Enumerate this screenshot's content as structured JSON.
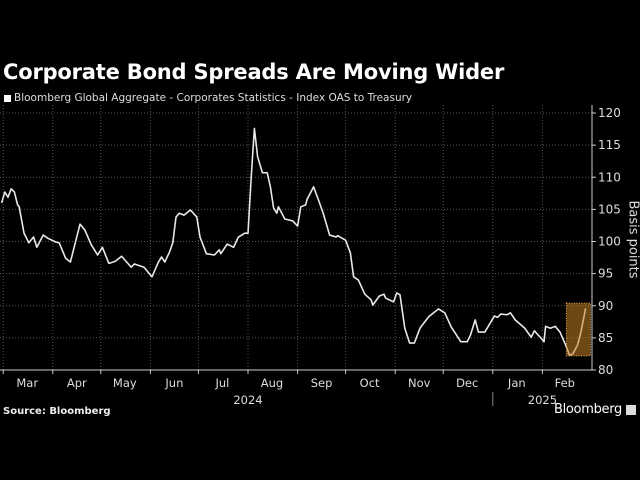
{
  "chart_data": {
    "type": "line",
    "title": "Corporate Bond Spreads Are Moving Wider",
    "series": [
      {
        "name": "Bloomberg Global Aggregate - Corporates Statistics - Index OAS to Treasury",
        "color": "#e8e8e8",
        "x": [
          "2024-02-29",
          "2024-03-02",
          "2024-03-04",
          "2024-03-06",
          "2024-03-08",
          "2024-03-10",
          "2024-03-11",
          "2024-03-14",
          "2024-03-17",
          "2024-03-20",
          "2024-03-22",
          "2024-03-26",
          "2024-03-29",
          "2024-04-03",
          "2024-04-05",
          "2024-04-09",
          "2024-04-12",
          "2024-04-18",
          "2024-04-21",
          "2024-04-25",
          "2024-04-29",
          "2024-05-02",
          "2024-05-06",
          "2024-05-10",
          "2024-05-14",
          "2024-05-20",
          "2024-05-22",
          "2024-05-28",
          "2024-06-02",
          "2024-06-06",
          "2024-06-08",
          "2024-06-10",
          "2024-06-13",
          "2024-06-15",
          "2024-06-17",
          "2024-06-19",
          "2024-06-22",
          "2024-06-26",
          "2024-06-30",
          "2024-07-02",
          "2024-07-06",
          "2024-07-11",
          "2024-07-14",
          "2024-07-15",
          "2024-07-19",
          "2024-07-23",
          "2024-07-26",
          "2024-07-30",
          "2024-08-01",
          "2024-08-03",
          "2024-08-05",
          "2024-08-07",
          "2024-08-10",
          "2024-08-13",
          "2024-08-15",
          "2024-08-17",
          "2024-08-19",
          "2024-08-20",
          "2024-08-24",
          "2024-08-29",
          "2024-09-01",
          "2024-09-03",
          "2024-09-06",
          "2024-09-07",
          "2024-09-11",
          "2024-09-14",
          "2024-09-17",
          "2024-09-21",
          "2024-09-25",
          "2024-09-26",
          "2024-10-01",
          "2024-10-04",
          "2024-10-06",
          "2024-10-09",
          "2024-10-13",
          "2024-10-17",
          "2024-10-18",
          "2024-10-22",
          "2024-10-25",
          "2024-10-26",
          "2024-10-31",
          "2024-11-02",
          "2024-11-04",
          "2024-11-07",
          "2024-11-10",
          "2024-11-13",
          "2024-11-16",
          "2024-11-17",
          "2024-11-22",
          "2024-11-28",
          "2024-12-02",
          "2024-12-06",
          "2024-12-12",
          "2024-12-16",
          "2024-12-18",
          "2024-12-21",
          "2024-12-23",
          "2024-12-27",
          "2025-01-02",
          "2025-01-04",
          "2025-01-06",
          "2025-01-10",
          "2025-01-12",
          "2025-01-15",
          "2025-01-21",
          "2025-01-25",
          "2025-01-27",
          "2025-01-31",
          "2025-02-02",
          "2025-02-03",
          "2025-02-06",
          "2025-02-09",
          "2025-02-12",
          "2025-02-15",
          "2025-02-18",
          "2025-02-20",
          "2025-02-23",
          "2025-02-25",
          "2025-02-28"
        ],
        "values": [
          106.0,
          107.7,
          106.9,
          108.2,
          107.7,
          105.7,
          105.4,
          101.3,
          99.8,
          100.7,
          99.1,
          101.0,
          100.5,
          99.9,
          99.8,
          97.4,
          96.8,
          102.7,
          101.8,
          99.5,
          97.9,
          99.1,
          96.6,
          96.9,
          97.7,
          96.0,
          96.5,
          96.0,
          94.5,
          96.8,
          97.6,
          96.8,
          98.4,
          99.8,
          103.8,
          104.4,
          104.1,
          104.9,
          103.8,
          100.7,
          98.1,
          97.9,
          98.7,
          98.1,
          99.6,
          99.1,
          100.7,
          101.3,
          101.3,
          110.0,
          117.6,
          113.2,
          110.7,
          110.7,
          108.5,
          105.2,
          104.4,
          105.4,
          103.5,
          103.2,
          102.4,
          105.4,
          105.7,
          106.6,
          108.5,
          106.5,
          104.4,
          101.0,
          100.7,
          100.9,
          100.2,
          98.2,
          94.5,
          94.0,
          91.8,
          90.9,
          90.1,
          91.5,
          91.8,
          91.2,
          90.6,
          92.0,
          91.7,
          86.5,
          84.2,
          84.2,
          86.2,
          86.7,
          88.3,
          89.5,
          88.9,
          86.7,
          84.4,
          84.4,
          85.4,
          87.8,
          85.9,
          85.9,
          88.4,
          88.2,
          88.7,
          88.6,
          88.9,
          87.8,
          86.5,
          85.1,
          86.1,
          85.0,
          84.4,
          86.8,
          86.5,
          86.8,
          85.9,
          84.2,
          82.3,
          82.5,
          83.9,
          85.8,
          89.6
        ]
      }
    ],
    "xlim": [
      "2024-02-28",
      "2025-03-04"
    ],
    "ylim": [
      80,
      120
    ],
    "yticks": [
      "80",
      "85",
      "90",
      "95",
      "100",
      "105",
      "110",
      "115",
      "120"
    ],
    "ylabel": "Basis points",
    "y_axis_side": "right",
    "xtick_labels": [
      {
        "label": "Mar",
        "date": "2024-03-16"
      },
      {
        "label": "Apr",
        "date": "2024-04-16"
      },
      {
        "label": "May",
        "date": "2024-05-16"
      },
      {
        "label": "Jun",
        "date": "2024-06-16"
      },
      {
        "label": "Jul",
        "date": "2024-07-16"
      },
      {
        "label": "Aug",
        "date": "2024-08-16"
      },
      {
        "label": "Sep",
        "date": "2024-09-16"
      },
      {
        "label": "Oct",
        "date": "2024-10-16"
      },
      {
        "label": "Nov",
        "date": "2024-11-16"
      },
      {
        "label": "Dec",
        "date": "2024-12-16"
      },
      {
        "label": "Jan",
        "date": "2025-01-16"
      },
      {
        "label": "Feb",
        "date": "2025-02-15"
      }
    ],
    "month_boundaries": [
      "2024-03-01",
      "2024-04-01",
      "2024-05-01",
      "2024-06-01",
      "2024-07-01",
      "2024-08-01",
      "2024-09-01",
      "2024-10-01",
      "2024-11-01",
      "2024-12-01",
      "2025-01-01",
      "2025-02-01"
    ],
    "year_labels": [
      {
        "label": "2024",
        "date": "2024-08-01"
      },
      {
        "label": "2025",
        "date": "2025-02-01"
      }
    ],
    "year_divider": "2025-01-01",
    "highlight": {
      "x": [
        "2025-02-16",
        "2025-03-03"
      ],
      "y": [
        82.2,
        90.4
      ],
      "color": "#c8822a"
    },
    "grid": true,
    "legend": "top-left"
  },
  "source": "Source: Bloomberg",
  "brand": "Bloomberg"
}
